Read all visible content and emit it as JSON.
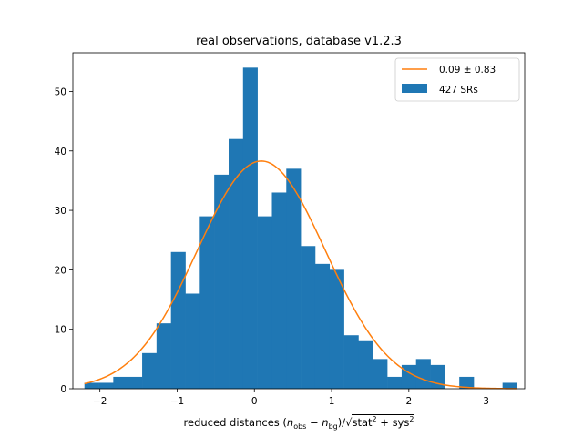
{
  "chart_data": {
    "type": "bar",
    "title": "real observations, database v1.2.3",
    "xlabel_parts": {
      "prefix": "reduced distances (",
      "n": "n",
      "obs": "obs",
      "minus": " − ",
      "bg": "bg",
      "close": ")/",
      "sqrt": "√",
      "stat": "stat",
      "two": "2",
      "plus": " + ",
      "sys": "sys"
    },
    "xlim": [
      -2.35,
      3.5
    ],
    "ylim": [
      0,
      56.5
    ],
    "xticks": [
      -2,
      -1,
      0,
      1,
      2,
      3
    ],
    "xtick_labels": [
      "−2",
      "−1",
      "0",
      "1",
      "2",
      "3"
    ],
    "yticks": [
      0,
      10,
      20,
      30,
      40,
      50
    ],
    "bin_edges": [
      -2.2,
      -2.013,
      -1.827,
      -1.64,
      -1.453,
      -1.267,
      -1.08,
      -0.893,
      -0.707,
      -0.52,
      -0.333,
      -0.147,
      0.04,
      0.227,
      0.413,
      0.6,
      0.787,
      0.973,
      1.16,
      1.347,
      1.533,
      1.72,
      1.907,
      2.093,
      2.28,
      2.467,
      2.653,
      2.84,
      3.027,
      3.213,
      3.4
    ],
    "counts": [
      1,
      1,
      2,
      2,
      6,
      11,
      23,
      16,
      29,
      36,
      42,
      54,
      29,
      33,
      37,
      24,
      21,
      20,
      9,
      8,
      5,
      2,
      4,
      5,
      4,
      0,
      2,
      0,
      0,
      1
    ],
    "series": [
      {
        "name": "427 SRs",
        "kind": "histogram",
        "color": "#1f77b4"
      },
      {
        "name": "0.09 ± 0.83",
        "kind": "gaussian",
        "color": "#ff7f0e",
        "mean": 0.09,
        "sigma": 0.83,
        "peak": 38.3
      }
    ],
    "legend_position": "top-right",
    "grid": false
  }
}
